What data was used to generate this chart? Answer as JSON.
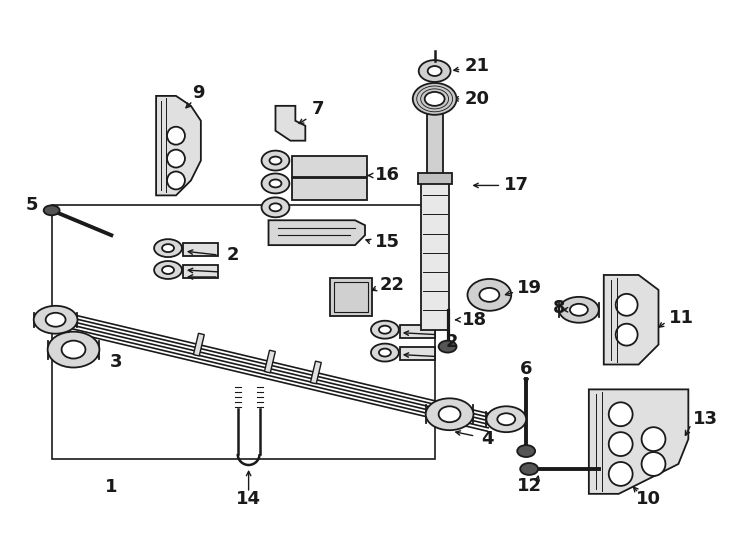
{
  "bg_color": "#ffffff",
  "line_color": "#1a1a1a",
  "fig_width": 7.34,
  "fig_height": 5.4,
  "dpi": 100,
  "lw": 1.3
}
